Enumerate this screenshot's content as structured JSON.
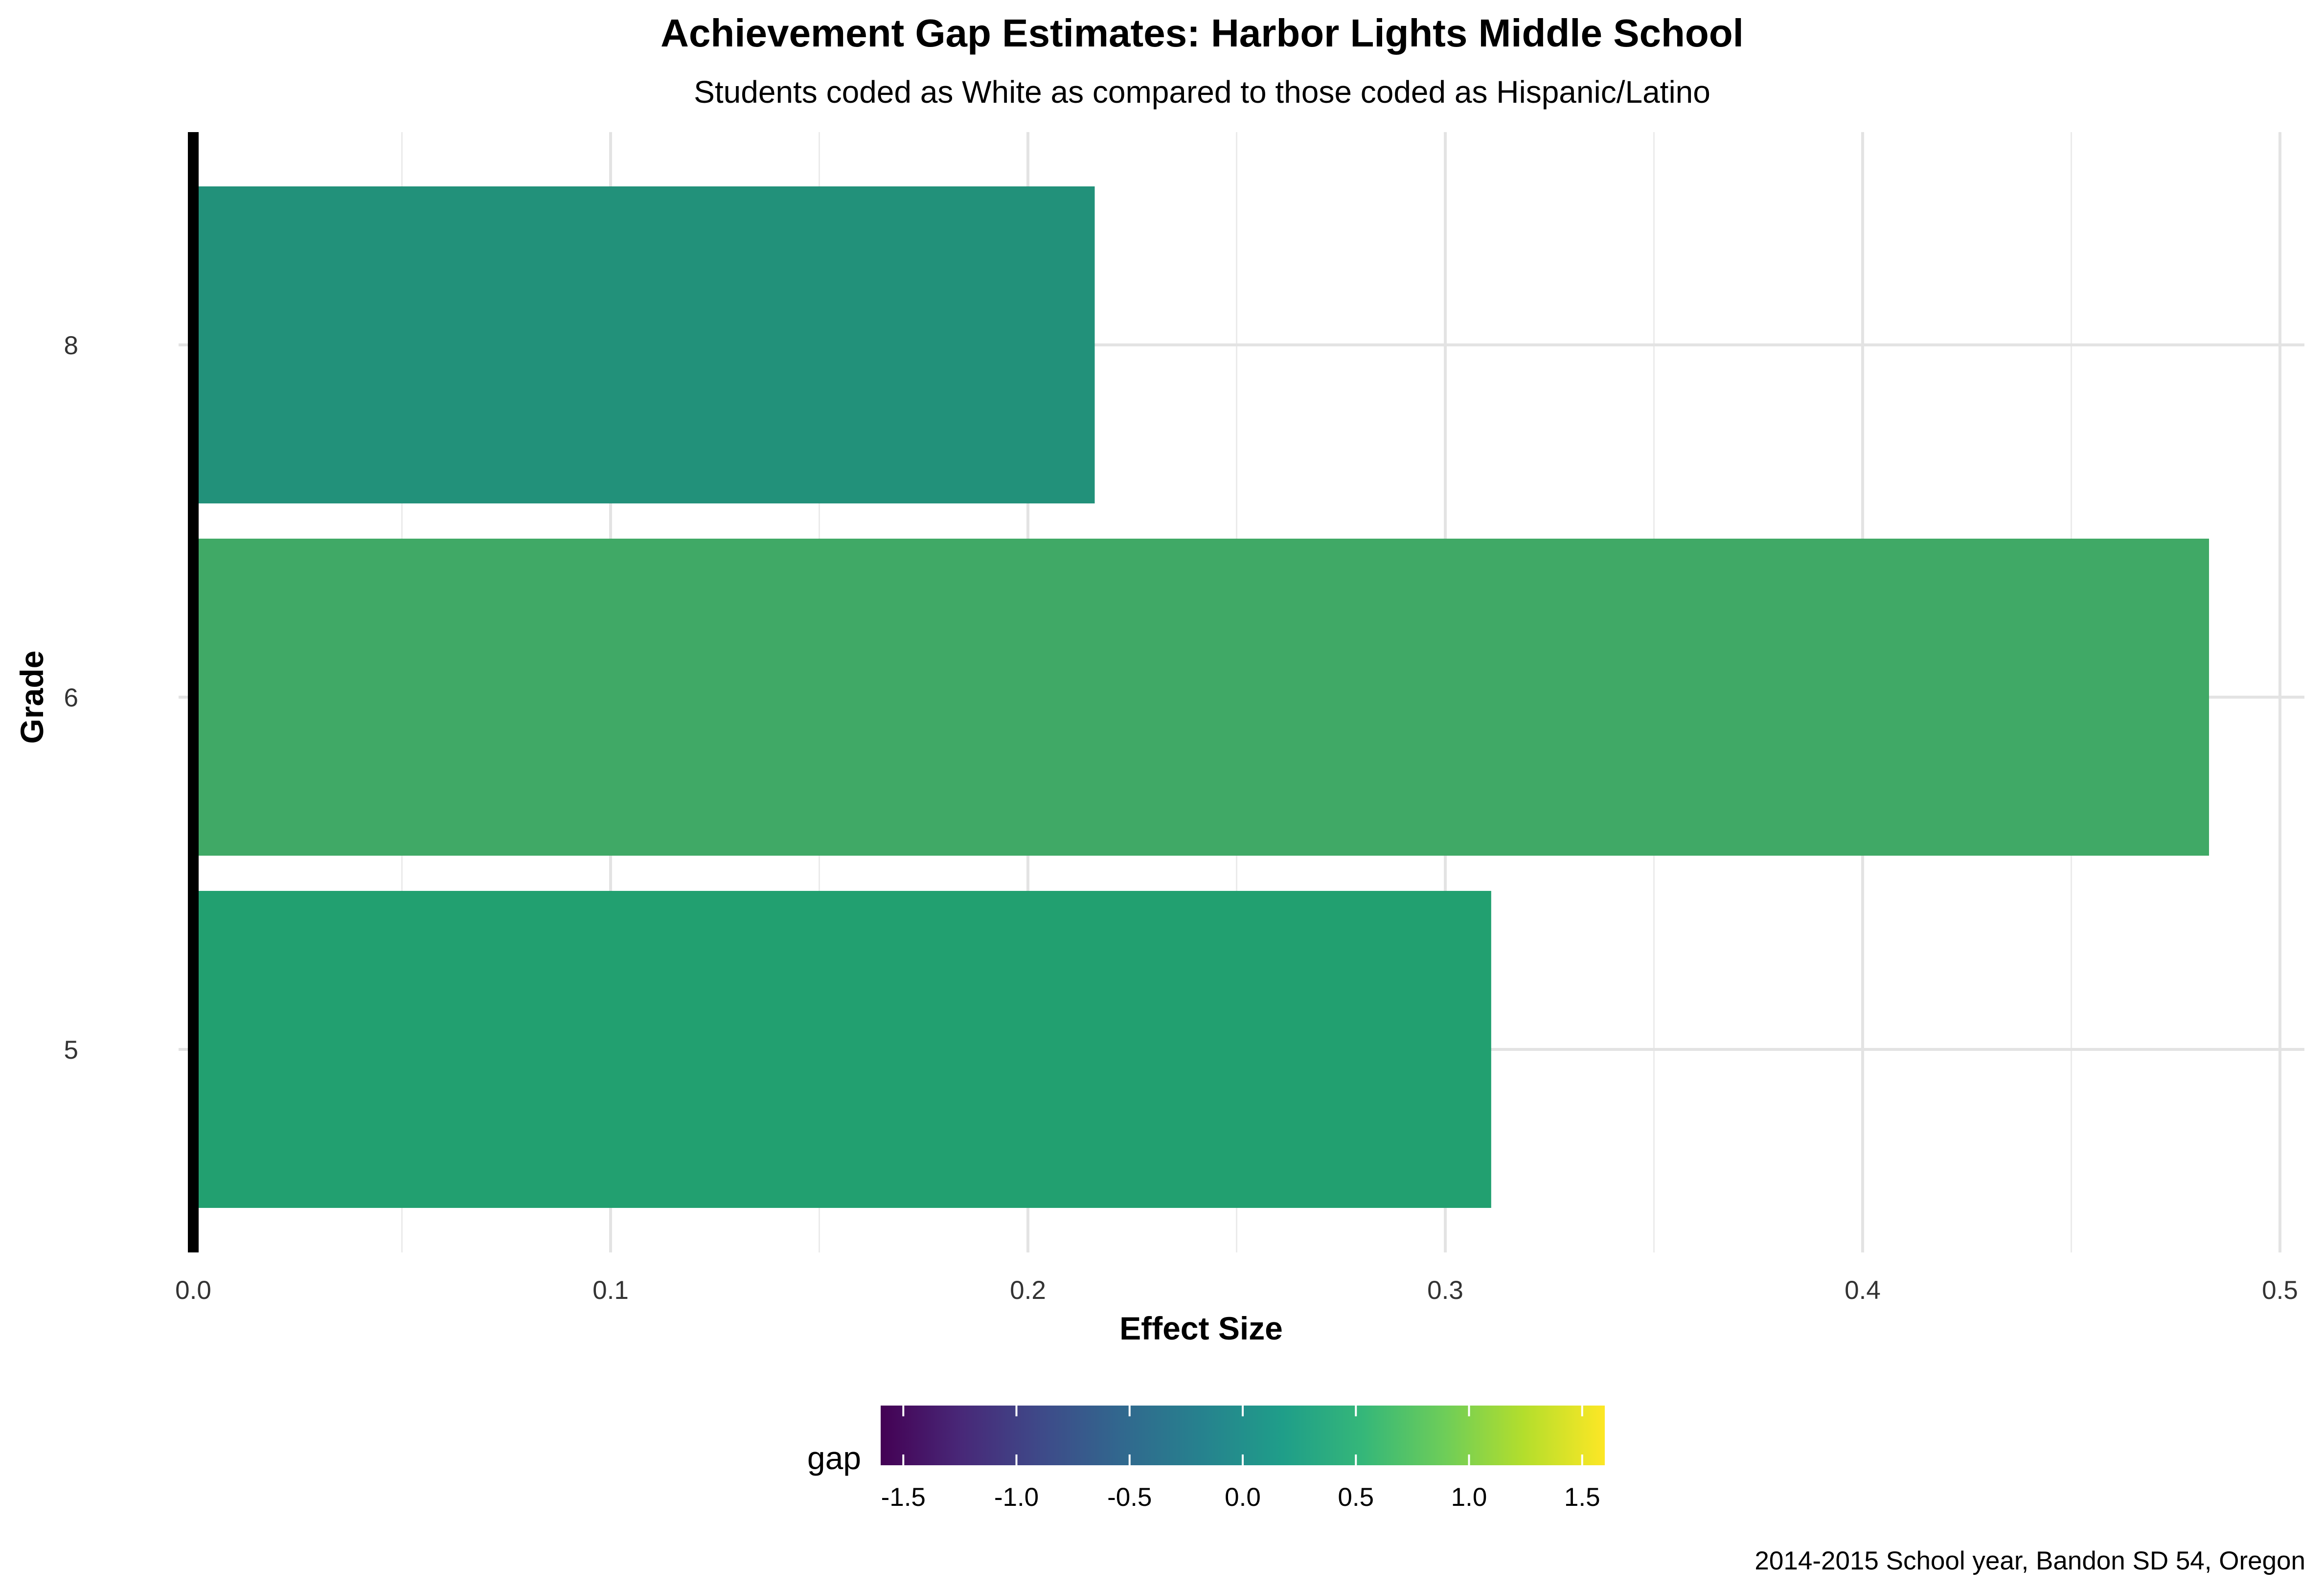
{
  "chart_data": {
    "type": "bar",
    "orientation": "horizontal",
    "title": "Achievement Gap Estimates: Harbor Lights Middle School",
    "subtitle": "Students coded as White as compared to those coded as Hispanic/Latino",
    "xlabel": "Effect Size",
    "ylabel": "Grade",
    "caption": "2014-2015 School year, Bandon SD 54, Oregon",
    "categories": [
      "5",
      "6",
      "8"
    ],
    "values": [
      0.311,
      0.483,
      0.216
    ],
    "xlim": [
      0,
      0.5
    ],
    "x_ticks": [
      0,
      0.1,
      0.2,
      0.3,
      0.4,
      0.5
    ],
    "x_tick_labels": [
      "0.0",
      "0.1",
      "0.2",
      "0.3",
      "0.4",
      "0.5"
    ],
    "grid": true,
    "bar_colors": [
      "#22A070",
      "#40A966",
      "#22917A"
    ],
    "legend": {
      "title": "gap",
      "placement": "bottom",
      "range": [
        -1.6,
        1.6
      ],
      "ticks": [
        -1.5,
        -1.0,
        -0.5,
        0.0,
        0.5,
        1.0,
        1.5
      ],
      "tick_labels": [
        "-1.5",
        "-1.0",
        "-0.5",
        "0.0",
        "0.5",
        "1.0",
        "1.5"
      ],
      "palette": [
        "#440154",
        "#482878",
        "#3E4A89",
        "#31688E",
        "#26828E",
        "#1F9E89",
        "#35B779",
        "#6DCD59",
        "#B4DE2C",
        "#FDE725"
      ]
    }
  }
}
